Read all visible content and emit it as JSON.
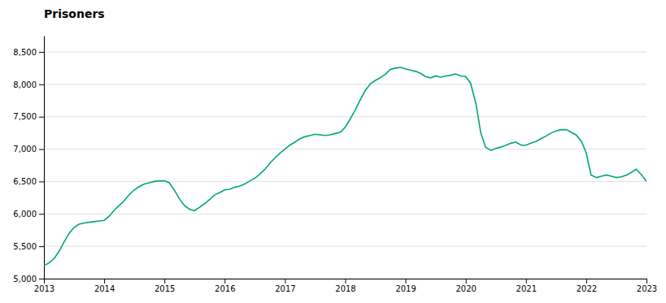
{
  "chart_data": {
    "type": "line",
    "title": "Prisoners",
    "color": "#00A86B",
    "grid": "y",
    "xlim": [
      2013,
      2023
    ],
    "ylim": [
      5000,
      8750
    ],
    "xticks": [
      2013,
      2014,
      2015,
      2016,
      2017,
      2018,
      2019,
      2020,
      2021,
      2022,
      2023
    ],
    "yticks": [
      {
        "value": 5000,
        "label": "5,000"
      },
      {
        "value": 5500,
        "label": "5,500"
      },
      {
        "value": 6000,
        "label": "6,000"
      },
      {
        "value": 6500,
        "label": "6,500"
      },
      {
        "value": 7000,
        "label": "7,000"
      },
      {
        "value": 7500,
        "label": "7,500"
      },
      {
        "value": 8000,
        "label": "8,000"
      },
      {
        "value": 8500,
        "label": "8,500"
      }
    ],
    "x": [
      2013.0,
      2013.08,
      2013.17,
      2013.25,
      2013.33,
      2013.42,
      2013.5,
      2013.58,
      2013.67,
      2013.75,
      2013.83,
      2013.92,
      2014.0,
      2014.08,
      2014.17,
      2014.25,
      2014.33,
      2014.42,
      2014.5,
      2014.58,
      2014.67,
      2014.75,
      2014.83,
      2014.92,
      2015.0,
      2015.08,
      2015.17,
      2015.25,
      2015.33,
      2015.42,
      2015.5,
      2015.58,
      2015.67,
      2015.75,
      2015.83,
      2015.92,
      2016.0,
      2016.08,
      2016.17,
      2016.25,
      2016.33,
      2016.42,
      2016.5,
      2016.58,
      2016.67,
      2016.75,
      2016.83,
      2016.92,
      2017.0,
      2017.08,
      2017.17,
      2017.25,
      2017.33,
      2017.42,
      2017.5,
      2017.58,
      2017.67,
      2017.75,
      2017.83,
      2017.92,
      2018.0,
      2018.08,
      2018.17,
      2018.25,
      2018.33,
      2018.42,
      2018.5,
      2018.58,
      2018.67,
      2018.75,
      2018.83,
      2018.92,
      2019.0,
      2019.08,
      2019.17,
      2019.25,
      2019.33,
      2019.42,
      2019.5,
      2019.58,
      2019.67,
      2019.75,
      2019.83,
      2019.92,
      2020.0,
      2020.08,
      2020.17,
      2020.25,
      2020.33,
      2020.42,
      2020.5,
      2020.58,
      2020.67,
      2020.75,
      2020.83,
      2020.92,
      2021.0,
      2021.08,
      2021.17,
      2021.25,
      2021.33,
      2021.42,
      2021.5,
      2021.58,
      2021.67,
      2021.75,
      2021.83,
      2021.92,
      2022.0,
      2022.08,
      2022.17,
      2022.25,
      2022.33,
      2022.42,
      2022.5,
      2022.58,
      2022.67,
      2022.75,
      2022.83,
      2022.92,
      2023.0
    ],
    "values": [
      5200,
      5240,
      5310,
      5420,
      5560,
      5700,
      5790,
      5840,
      5860,
      5870,
      5880,
      5890,
      5900,
      5960,
      6060,
      6130,
      6200,
      6300,
      6370,
      6420,
      6460,
      6480,
      6500,
      6510,
      6510,
      6480,
      6360,
      6230,
      6130,
      6070,
      6050,
      6100,
      6160,
      6220,
      6290,
      6330,
      6370,
      6380,
      6410,
      6430,
      6460,
      6510,
      6550,
      6610,
      6690,
      6780,
      6860,
      6940,
      7000,
      7060,
      7110,
      7160,
      7190,
      7210,
      7230,
      7220,
      7210,
      7220,
      7240,
      7260,
      7340,
      7460,
      7610,
      7760,
      7900,
      8010,
      8060,
      8100,
      8160,
      8230,
      8250,
      8260,
      8240,
      8220,
      8200,
      8170,
      8120,
      8100,
      8130,
      8110,
      8130,
      8140,
      8160,
      8130,
      8120,
      8020,
      7700,
      7250,
      7030,
      6980,
      7010,
      7030,
      7060,
      7090,
      7110,
      7060,
      7060,
      7090,
      7120,
      7160,
      7200,
      7250,
      7280,
      7300,
      7300,
      7260,
      7220,
      7120,
      6940,
      6600,
      6560,
      6580,
      6600,
      6580,
      6560,
      6570,
      6600,
      6640,
      6690,
      6600,
      6501
    ]
  }
}
